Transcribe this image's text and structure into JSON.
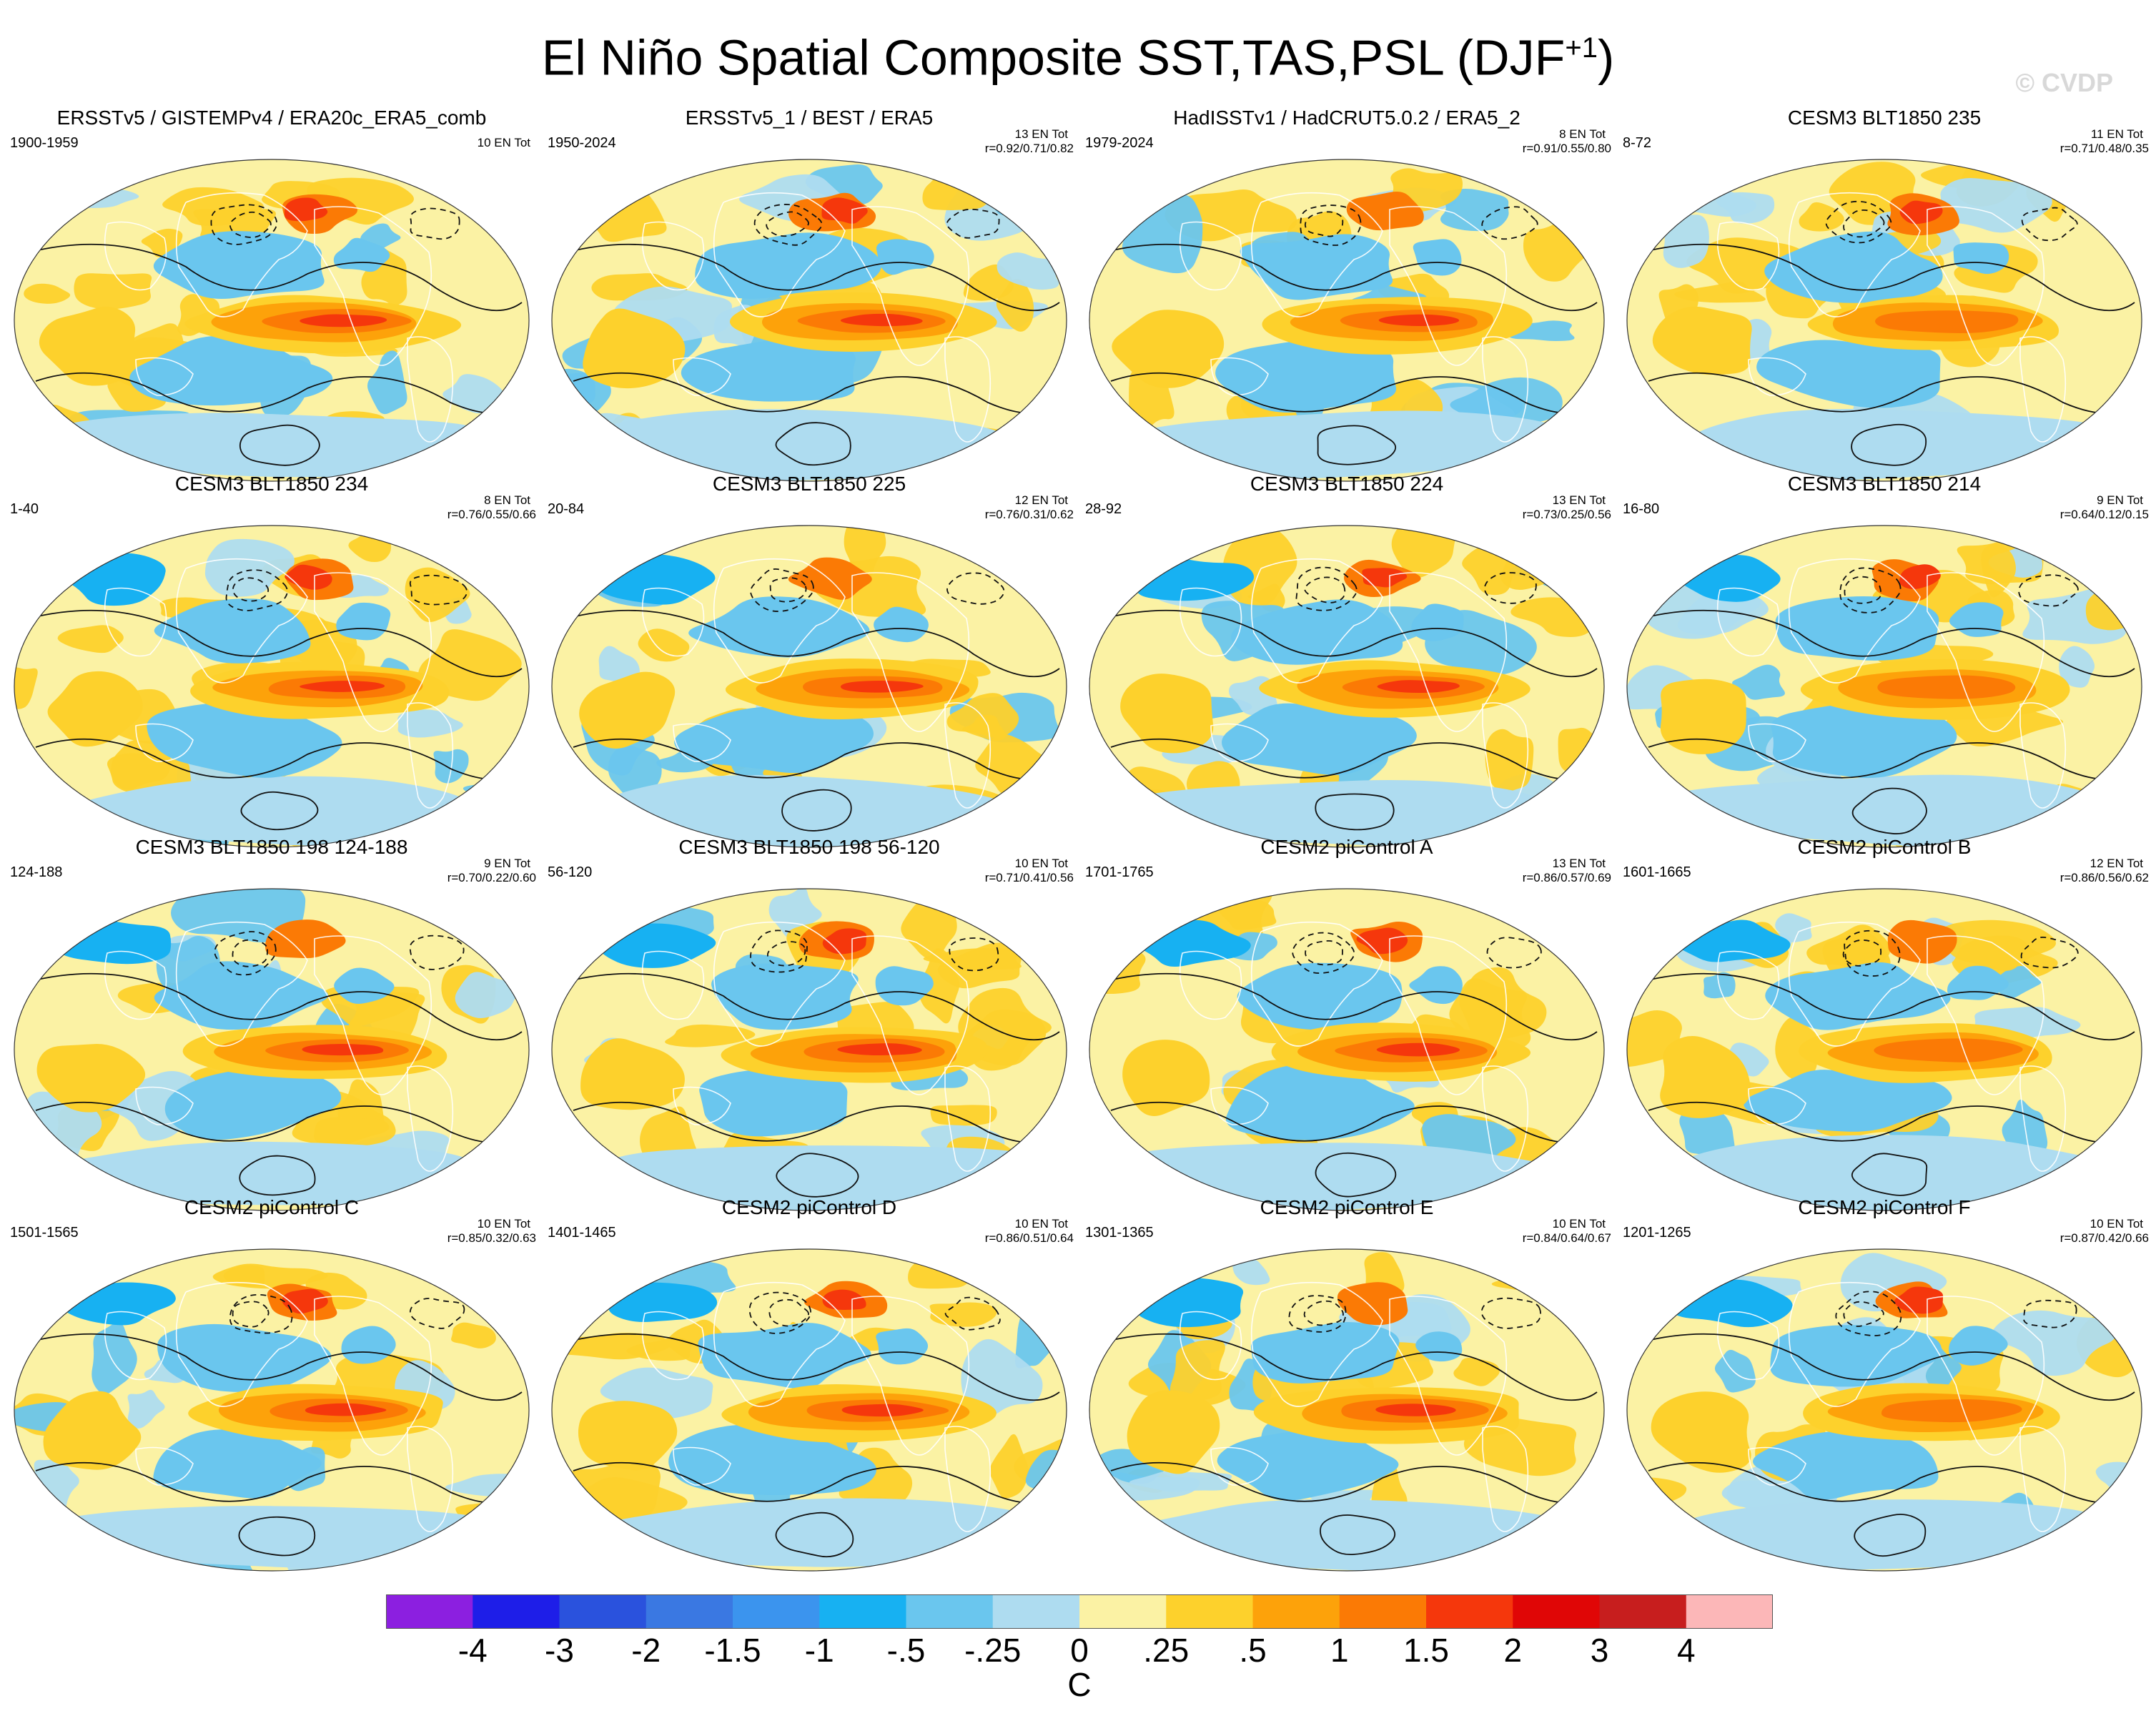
{
  "title": "El Niño Spatial Composite SST,TAS,PSL (DJF",
  "title_superscript": "+1",
  "title_close": ")",
  "watermark": "© CVDP",
  "chart_data": {
    "type": "heatmap",
    "title": "El Niño Spatial Composite SST,TAS,PSL (DJF+1)",
    "variables": [
      "SST",
      "TAS",
      "PSL"
    ],
    "season": "DJF+1",
    "projection": "Robinson",
    "colorbar": {
      "unit": "C",
      "levels": [
        "-4",
        "-3",
        "-2",
        "-1.5",
        "-1",
        "-.5",
        "-.25",
        "0",
        ".25",
        ".5",
        "1",
        "1.5",
        "2",
        "3",
        "4"
      ],
      "colors": [
        "#8c1fe0",
        "#1e1ee8",
        "#2a52dd",
        "#3a78e2",
        "#3b94ee",
        "#17b1f2",
        "#6ac6ee",
        "#aedcf0",
        "#fbf2a4",
        "#fdd12c",
        "#fda20a",
        "#fb7a05",
        "#f5370c",
        "#e00606",
        "#c71e1e",
        "#fcb7b8"
      ]
    },
    "panels": [
      {
        "title": "ERSSTv5 / GISTEMPv4 / ERA20c_ERA5_comb",
        "years": "1900-1959",
        "count": "10 EN Tot",
        "corr": ""
      },
      {
        "title": "ERSSTv5_1 / BEST / ERA5",
        "years": "1950-2024",
        "count": "13 EN Tot",
        "corr": "r=0.92/0.71/0.82"
      },
      {
        "title": "HadISSTv1 / HadCRUT5.0.2 / ERA5_2",
        "years": "1979-2024",
        "count": "8 EN Tot",
        "corr": "r=0.91/0.55/0.80"
      },
      {
        "title": "CESM3 BLT1850 235",
        "years": "8-72",
        "count": "11 EN Tot",
        "corr": "r=0.71/0.48/0.35"
      },
      {
        "title": "CESM3 BLT1850 234",
        "years": "1-40",
        "count": "8 EN Tot",
        "corr": "r=0.76/0.55/0.66"
      },
      {
        "title": "CESM3 BLT1850 225",
        "years": "20-84",
        "count": "12 EN Tot",
        "corr": "r=0.76/0.31/0.62"
      },
      {
        "title": "CESM3 BLT1850 224",
        "years": "28-92",
        "count": "13 EN Tot",
        "corr": "r=0.73/0.25/0.56"
      },
      {
        "title": "CESM3 BLT1850 214",
        "years": "16-80",
        "count": "9 EN Tot",
        "corr": "r=0.64/0.12/0.15"
      },
      {
        "title": "CESM3 BLT1850 198 124-188",
        "years": "124-188",
        "count": "9 EN Tot",
        "corr": "r=0.70/0.22/0.60"
      },
      {
        "title": "CESM3 BLT1850 198 56-120",
        "years": "56-120",
        "count": "10 EN Tot",
        "corr": "r=0.71/0.41/0.56"
      },
      {
        "title": "CESM2 piControl A",
        "years": "1701-1765",
        "count": "13 EN Tot",
        "corr": "r=0.86/0.57/0.69"
      },
      {
        "title": "CESM2 piControl B",
        "years": "1601-1665",
        "count": "12 EN Tot",
        "corr": "r=0.86/0.56/0.62"
      },
      {
        "title": "CESM2 piControl C",
        "years": "1501-1565",
        "count": "10 EN Tot",
        "corr": "r=0.85/0.32/0.63"
      },
      {
        "title": "CESM2 piControl D",
        "years": "1401-1465",
        "count": "10 EN Tot",
        "corr": "r=0.86/0.51/0.64"
      },
      {
        "title": "CESM2 piControl E",
        "years": "1301-1365",
        "count": "10 EN Tot",
        "corr": "r=0.84/0.64/0.67"
      },
      {
        "title": "CESM2 piControl F",
        "years": "1201-1265",
        "count": "10 EN Tot",
        "corr": "r=0.87/0.42/0.66"
      }
    ]
  }
}
